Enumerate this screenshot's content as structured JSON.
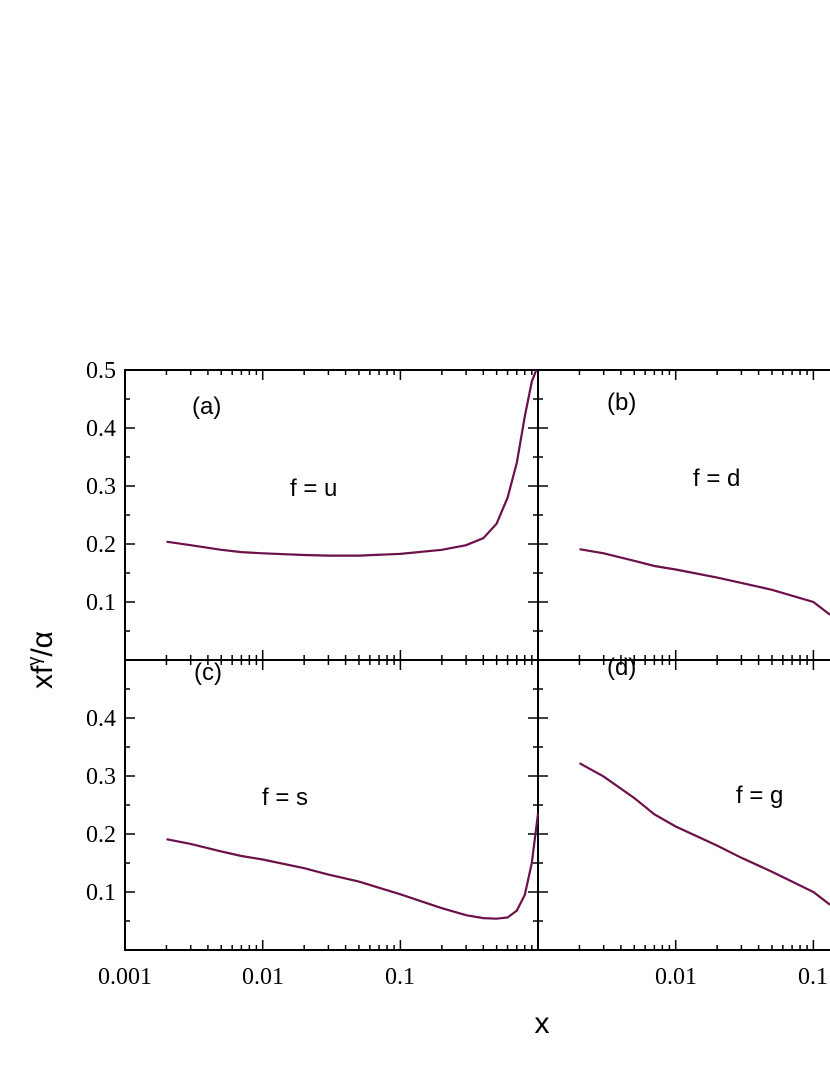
{
  "chart_data": [
    {
      "panel": "(a)",
      "annotation": "f = u",
      "type": "line",
      "x_scale": "log",
      "xlim": [
        0.001,
        1
      ],
      "ylim": [
        0,
        0.5
      ],
      "series": [
        {
          "color": "#6b1048",
          "x": [
            0.002,
            0.003,
            0.005,
            0.007,
            0.01,
            0.02,
            0.03,
            0.05,
            0.1,
            0.2,
            0.3,
            0.4,
            0.5,
            0.6,
            0.7,
            0.8,
            0.9,
            0.97
          ],
          "y": [
            0.204,
            0.198,
            0.19,
            0.186,
            0.184,
            0.181,
            0.18,
            0.18,
            0.183,
            0.19,
            0.198,
            0.21,
            0.235,
            0.28,
            0.34,
            0.42,
            0.48,
            0.5
          ]
        }
      ]
    },
    {
      "panel": "(b)",
      "annotation": "f = d",
      "type": "line",
      "x_scale": "log",
      "xlim": [
        0.001,
        1
      ],
      "ylim": [
        0,
        0.5
      ],
      "series": [
        {
          "color": "#6b1048",
          "x": [
            0.002,
            0.003,
            0.005,
            0.007,
            0.01,
            0.02,
            0.03,
            0.05,
            0.1,
            0.15
          ],
          "y": [
            0.191,
            0.184,
            0.171,
            0.162,
            0.156,
            0.142,
            0.133,
            0.121,
            0.1,
            0.078
          ]
        }
      ]
    },
    {
      "panel": "(c)",
      "annotation": "f = s",
      "type": "line",
      "x_scale": "log",
      "xlim": [
        0.001,
        1
      ],
      "ylim": [
        0,
        0.5
      ],
      "series": [
        {
          "color": "#6b1048",
          "x": [
            0.002,
            0.003,
            0.005,
            0.007,
            0.01,
            0.02,
            0.03,
            0.05,
            0.1,
            0.2,
            0.3,
            0.4,
            0.5,
            0.6,
            0.7,
            0.8,
            0.9,
            1.0
          ],
          "y": [
            0.191,
            0.183,
            0.17,
            0.162,
            0.156,
            0.141,
            0.13,
            0.118,
            0.096,
            0.072,
            0.06,
            0.055,
            0.054,
            0.056,
            0.068,
            0.095,
            0.15,
            0.235
          ]
        }
      ]
    },
    {
      "panel": "(d)",
      "annotation": "f = g",
      "type": "line",
      "x_scale": "log",
      "xlim": [
        0.001,
        1
      ],
      "ylim": [
        0,
        0.5
      ],
      "series": [
        {
          "color": "#6b1048",
          "x": [
            0.002,
            0.003,
            0.005,
            0.007,
            0.01,
            0.02,
            0.03,
            0.05,
            0.1,
            0.15
          ],
          "y": [
            0.322,
            0.299,
            0.262,
            0.234,
            0.213,
            0.18,
            0.159,
            0.135,
            0.1,
            0.078
          ]
        }
      ]
    }
  ],
  "axes": {
    "xlabel": "x",
    "ylabel_main": "xf",
    "ylabel_sup": "γ",
    "ylabel_sub": "/α",
    "x_ticks": [
      "0.001",
      "0.01",
      "0.1"
    ],
    "x_ticks_right": [
      "0.01",
      "0.1"
    ],
    "y_ticks_top": [
      "0.5",
      "0.4",
      "0.3",
      "0.2",
      "0.1"
    ],
    "y_ticks_bottom": [
      "0.4",
      "0.3",
      "0.2",
      "0.1"
    ]
  }
}
